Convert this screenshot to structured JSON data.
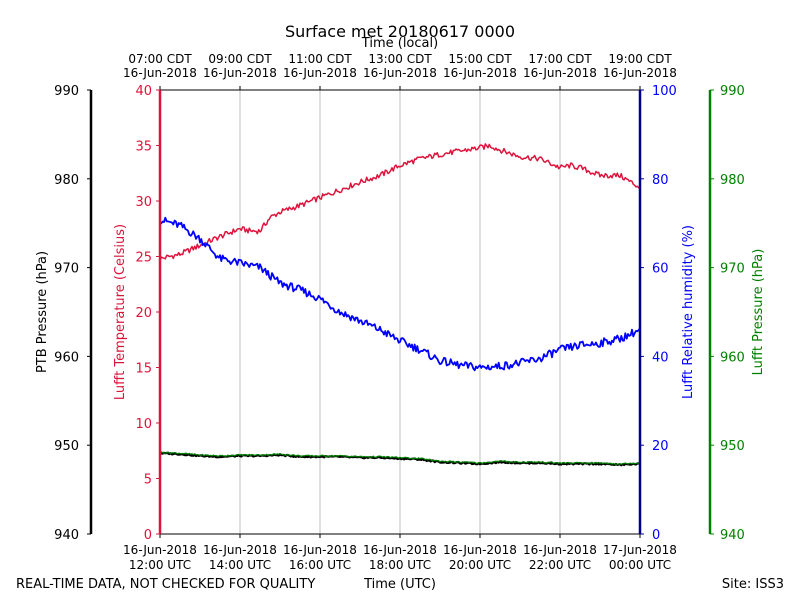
{
  "chart_data": {
    "type": "line",
    "title": "Surface met 20180617 0000",
    "top_xlabel": "Time (local)",
    "xlabel": "Time (UTC)",
    "footer_left": "REAL-TIME DATA, NOT CHECKED FOR QUALITY",
    "footer_right": "Site: ISS3",
    "x_range_hours": [
      12,
      24
    ],
    "x_ticks": [
      {
        "hour": 12,
        "bottom": [
          "16-Jun-2018",
          "12:00 UTC"
        ],
        "top": [
          "07:00 CDT",
          "16-Jun-2018"
        ]
      },
      {
        "hour": 14,
        "bottom": [
          "16-Jun-2018",
          "14:00 UTC"
        ],
        "top": [
          "09:00 CDT",
          "16-Jun-2018"
        ]
      },
      {
        "hour": 16,
        "bottom": [
          "16-Jun-2018",
          "16:00 UTC"
        ],
        "top": [
          "11:00 CDT",
          "16-Jun-2018"
        ]
      },
      {
        "hour": 18,
        "bottom": [
          "16-Jun-2018",
          "18:00 UTC"
        ],
        "top": [
          "13:00 CDT",
          "16-Jun-2018"
        ]
      },
      {
        "hour": 20,
        "bottom": [
          "16-Jun-2018",
          "20:00 UTC"
        ],
        "top": [
          "15:00 CDT",
          "16-Jun-2018"
        ]
      },
      {
        "hour": 22,
        "bottom": [
          "16-Jun-2018",
          "22:00 UTC"
        ],
        "top": [
          "17:00 CDT",
          "16-Jun-2018"
        ]
      },
      {
        "hour": 24,
        "bottom": [
          "17-Jun-2018",
          "00:00 UTC"
        ],
        "top": [
          "19:00 CDT",
          "16-Jun-2018"
        ]
      }
    ],
    "axes": {
      "ptb_pressure": {
        "label": "PTB Pressure (hPa)",
        "range": [
          940,
          990
        ],
        "ticks": [
          940,
          950,
          960,
          970,
          980,
          990
        ],
        "color": "#000000"
      },
      "temperature": {
        "label": "Lufft Temperature (Celsius)",
        "range": [
          0,
          40
        ],
        "ticks": [
          0,
          5,
          10,
          15,
          20,
          25,
          30,
          35,
          40
        ],
        "color": "#dc143c"
      },
      "humidity": {
        "label": "Lufft Relative humidity (%)",
        "range": [
          0,
          100
        ],
        "ticks": [
          0,
          20,
          40,
          60,
          80,
          100
        ],
        "color": "#0000ff"
      },
      "lufft_pressure": {
        "label": "Lufft Pressure (hPa)",
        "range": [
          940,
          990
        ],
        "ticks": [
          940,
          950,
          960,
          970,
          980,
          990
        ],
        "color": "#008000"
      }
    },
    "series": [
      {
        "name": "Lufft Temperature",
        "axis": "temperature",
        "color": "#dc143c",
        "x": [
          12.0,
          12.5,
          13.0,
          13.5,
          14.0,
          14.25,
          14.5,
          14.75,
          15.0,
          15.5,
          16.0,
          16.5,
          17.0,
          17.5,
          18.0,
          18.5,
          19.0,
          19.5,
          20.0,
          20.25,
          20.5,
          21.0,
          21.5,
          22.0,
          22.25,
          22.5,
          23.0,
          23.5,
          24.0
        ],
        "values": [
          24.8,
          25.2,
          26.0,
          26.8,
          27.5,
          27.3,
          27.3,
          28.5,
          29.0,
          29.6,
          30.3,
          31.0,
          31.7,
          32.3,
          33.2,
          33.8,
          34.2,
          34.5,
          34.8,
          35.0,
          34.6,
          34.0,
          33.8,
          33.0,
          33.2,
          33.0,
          32.3,
          32.3,
          31.2
        ]
      },
      {
        "name": "Lufft Relative humidity",
        "axis": "humidity",
        "color": "#0000ff",
        "x": [
          12.0,
          12.5,
          13.0,
          13.5,
          14.0,
          14.5,
          15.0,
          15.5,
          16.0,
          16.5,
          17.0,
          17.5,
          18.0,
          18.5,
          19.0,
          19.5,
          20.0,
          20.5,
          21.0,
          21.5,
          22.0,
          22.5,
          23.0,
          23.5,
          24.0
        ],
        "values": [
          70.8,
          69.5,
          66.5,
          62.0,
          61.0,
          60.0,
          56.5,
          55.0,
          53.0,
          50.0,
          48.0,
          46.0,
          43.5,
          41.5,
          39.0,
          38.0,
          37.5,
          37.8,
          38.5,
          39.5,
          41.5,
          42.5,
          43.0,
          44.0,
          46.0
        ]
      },
      {
        "name": "PTB Pressure",
        "axis": "ptb_pressure",
        "color": "#000000",
        "x": [
          12.0,
          12.5,
          13.0,
          13.5,
          14.0,
          14.5,
          15.0,
          15.5,
          16.0,
          16.5,
          17.0,
          17.5,
          18.0,
          18.5,
          19.0,
          19.5,
          20.0,
          20.5,
          21.0,
          21.5,
          22.0,
          22.5,
          23.0,
          23.5,
          24.0
        ],
        "values": [
          949.1,
          949.0,
          948.8,
          948.7,
          948.8,
          948.8,
          948.9,
          948.7,
          948.7,
          948.7,
          948.6,
          948.6,
          948.5,
          948.4,
          948.1,
          948.0,
          947.9,
          948.1,
          948.0,
          948.0,
          947.9,
          947.9,
          947.9,
          947.8,
          947.9
        ]
      },
      {
        "name": "Lufft Pressure",
        "axis": "ptb_pressure",
        "color": "#008000",
        "x": [
          12.0,
          12.5,
          13.0,
          13.5,
          14.0,
          14.5,
          15.0,
          15.5,
          16.0,
          16.5,
          17.0,
          17.5,
          18.0,
          18.5,
          19.0,
          19.5,
          20.0,
          20.5,
          21.0,
          21.5,
          22.0,
          22.5,
          23.0,
          23.5,
          24.0
        ],
        "values": [
          949.2,
          949.1,
          948.9,
          948.8,
          948.9,
          948.9,
          949.0,
          948.8,
          948.8,
          948.8,
          948.7,
          948.7,
          948.6,
          948.5,
          948.2,
          948.1,
          948.0,
          948.2,
          948.1,
          948.1,
          948.0,
          948.0,
          948.0,
          947.9,
          948.0
        ]
      }
    ]
  }
}
